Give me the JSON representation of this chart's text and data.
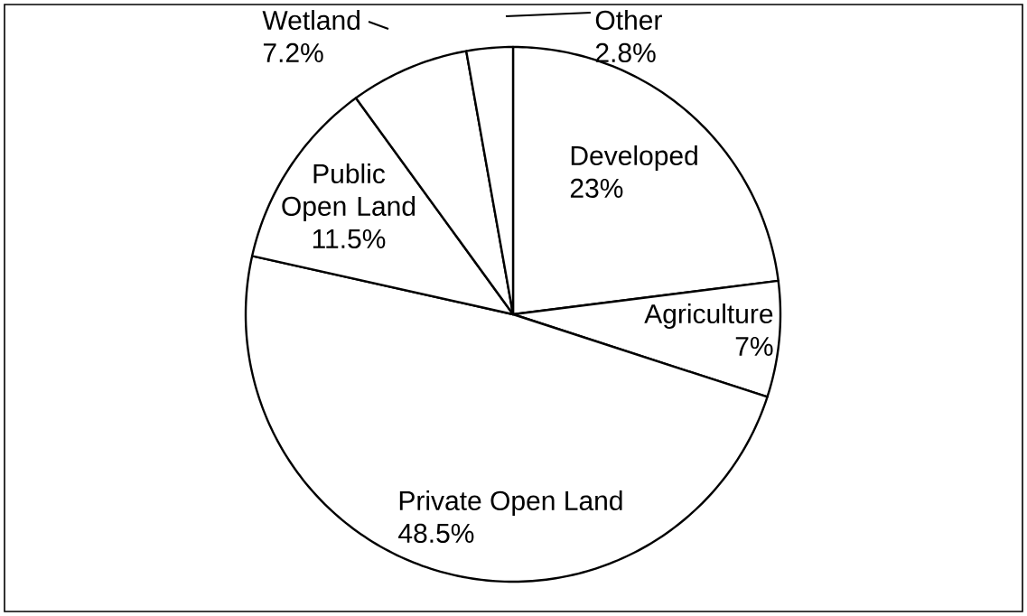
{
  "chart_data": {
    "type": "pie",
    "categories": [
      "Developed",
      "Agriculture",
      "Private Open Land",
      "Public Open Land",
      "Wetland",
      "Other"
    ],
    "values": [
      23,
      7,
      48.5,
      11.5,
      7.2,
      2.8
    ],
    "value_labels": [
      "23%",
      "7%",
      "48.5%",
      "11.5%",
      "7.2%",
      "2.8%"
    ],
    "colors": [
      "#ffffff",
      "#ffffff",
      "#ffffff",
      "#ffffff",
      "#ffffff",
      "#ffffff"
    ]
  }
}
